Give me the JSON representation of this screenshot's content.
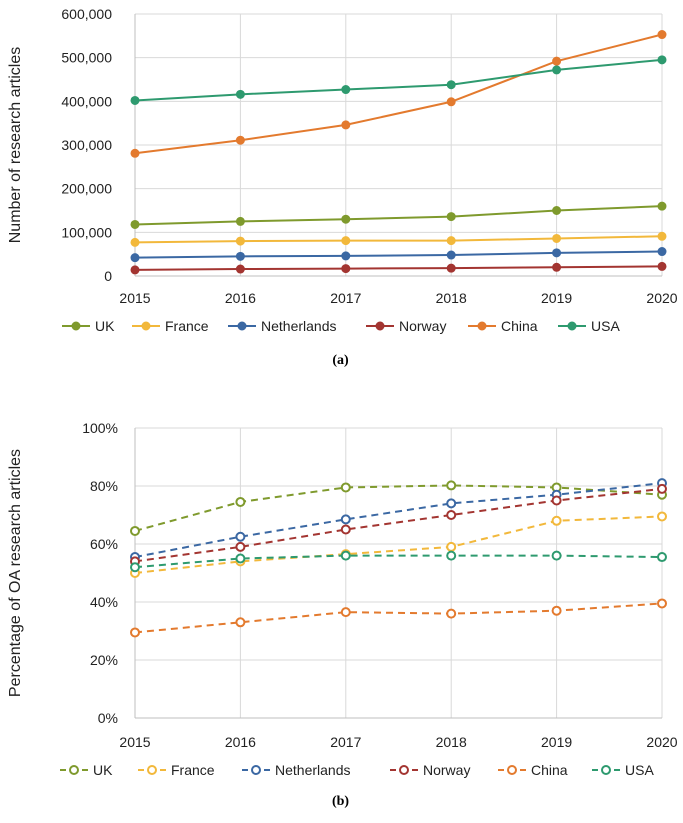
{
  "chart_data": [
    {
      "type": "line",
      "panel_label": "(a)",
      "ylabel": "Number of research articles",
      "x": [
        2015,
        2016,
        2017,
        2018,
        2019,
        2020
      ],
      "x_tick_labels": [
        "2015",
        "2016",
        "2017",
        "2018",
        "2019",
        "2020"
      ],
      "ylim": [
        0,
        600000
      ],
      "y_tick_labels": [
        "0",
        "100,000",
        "200,000",
        "300,000",
        "400,000",
        "500,000",
        "600,000"
      ],
      "grid": true,
      "line_style": "solid",
      "marker": "filled-circle",
      "legend_position": "bottom",
      "series": [
        {
          "name": "UK",
          "color": "#7f9a2d",
          "values": [
            118000,
            125000,
            130000,
            136000,
            150000,
            160000
          ]
        },
        {
          "name": "France",
          "color": "#f2b83b",
          "values": [
            77000,
            80000,
            81000,
            81000,
            86000,
            91000
          ]
        },
        {
          "name": "Netherlands",
          "color": "#3b68a3",
          "values": [
            42000,
            45000,
            46000,
            48000,
            53000,
            56000
          ]
        },
        {
          "name": "Norway",
          "color": "#a33531",
          "values": [
            14000,
            16000,
            17000,
            18000,
            20000,
            22000
          ]
        },
        {
          "name": "China",
          "color": "#e37a2e",
          "values": [
            281000,
            311000,
            346000,
            399000,
            492000,
            553000
          ]
        },
        {
          "name": "USA",
          "color": "#2e9a6f",
          "values": [
            402000,
            416000,
            427000,
            438000,
            472000,
            495000
          ]
        }
      ]
    },
    {
      "type": "line",
      "panel_label": "(b)",
      "ylabel": "Percentage of OA research articles",
      "x": [
        2015,
        2016,
        2017,
        2018,
        2019,
        2020
      ],
      "x_tick_labels": [
        "2015",
        "2016",
        "2017",
        "2018",
        "2019",
        "2020"
      ],
      "ylim": [
        0,
        100
      ],
      "y_tick_labels": [
        "0%",
        "20%",
        "40%",
        "60%",
        "80%",
        "100%"
      ],
      "grid": true,
      "line_style": "dashed",
      "marker": "open-circle",
      "legend_position": "bottom",
      "series": [
        {
          "name": "UK",
          "color": "#7f9a2d",
          "values": [
            64.5,
            74.5,
            79.5,
            80.2,
            79.5,
            77.0
          ]
        },
        {
          "name": "France",
          "color": "#f2b83b",
          "values": [
            50.0,
            54.0,
            56.5,
            59.0,
            68.0,
            69.5
          ]
        },
        {
          "name": "Netherlands",
          "color": "#3b68a3",
          "values": [
            55.5,
            62.5,
            68.5,
            74.0,
            77.0,
            81.0
          ]
        },
        {
          "name": "Norway",
          "color": "#a33531",
          "values": [
            54.0,
            59.0,
            65.0,
            70.0,
            75.0,
            79.0
          ]
        },
        {
          "name": "China",
          "color": "#e37a2e",
          "values": [
            29.5,
            33.0,
            36.5,
            36.0,
            37.0,
            39.5
          ]
        },
        {
          "name": "USA",
          "color": "#2e9a6f",
          "values": [
            52.0,
            55.0,
            56.0,
            56.0,
            56.0,
            55.5
          ]
        }
      ]
    }
  ]
}
